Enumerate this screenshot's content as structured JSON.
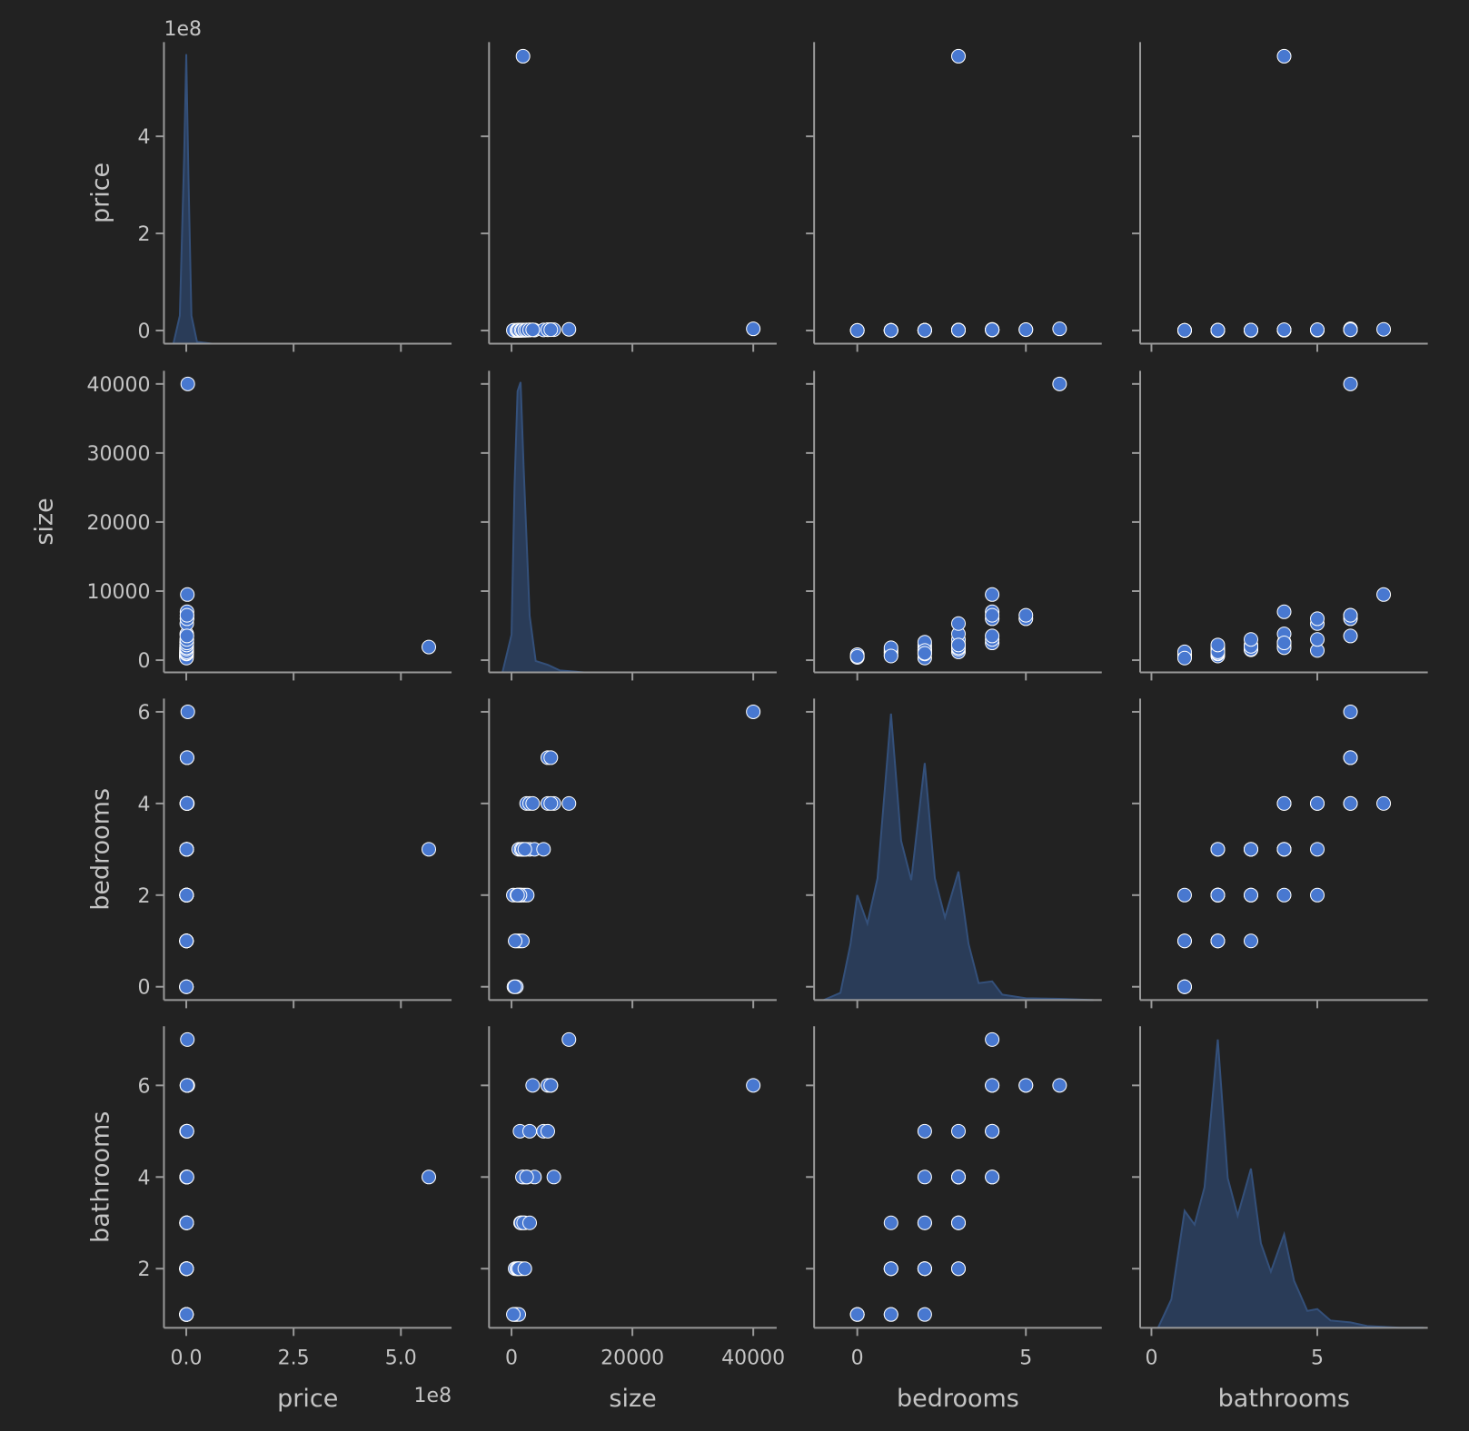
{
  "chart_data": {
    "type": "pairplot",
    "color": "#4878d0",
    "kde_color": "#2b3f5e",
    "variables": [
      {
        "name": "price",
        "offset_label": "1e8",
        "xlim": [
          -52000000,
          618000000
        ],
        "ylim": [
          -27000000,
          594000000
        ],
        "xticks": [
          {
            "value": 0,
            "label": "0.0"
          },
          {
            "value": 250000000,
            "label": "2.5"
          },
          {
            "value": 500000000,
            "label": "5.0"
          }
        ],
        "yticks": [
          0,
          {
            "value": 200000000,
            "label": "2"
          },
          {
            "value": 400000000,
            "label": "4"
          }
        ],
        "kde_x": [
          -30000000,
          -15000000,
          -5000000,
          0,
          5000000,
          12000000,
          25000000,
          60000000,
          610000000
        ],
        "kde_density": [
          0,
          9.3e-09,
          6.2e-08,
          9.6e-08,
          5.6e-08,
          9.3e-09,
          6e-10,
          0,
          0
        ],
        "density_lim": [
          0,
          1e-07
        ]
      },
      {
        "name": "size",
        "xlim": [
          -3720,
          43870
        ],
        "ylim": [
          -1760,
          41900
        ],
        "xticks": [
          0,
          20000,
          40000
        ],
        "yticks": [
          0,
          10000,
          20000,
          30000,
          40000
        ],
        "kde_x": [
          -1500,
          0,
          500,
          1000,
          1500,
          2000,
          3000,
          4000,
          6000,
          8000,
          12000,
          43000
        ],
        "kde_density": [
          0,
          5e-05,
          0.000248,
          0.000373,
          0.000385,
          0.000273,
          7.5e-05,
          1.5e-05,
          1e-05,
          2.5e-06,
          0,
          0
        ],
        "density_lim": [
          0,
          0.0004
        ]
      },
      {
        "name": "bedrooms",
        "xlim": [
          -1.28,
          7.25
        ],
        "ylim": [
          -0.29,
          6.29
        ],
        "xticks": [
          0,
          5
        ],
        "yticks": [
          0,
          2,
          4,
          6
        ],
        "kde_x": [
          -1.0,
          -0.5,
          -0.2,
          0,
          0.3,
          0.6,
          1.0,
          1.3,
          1.6,
          2.0,
          2.3,
          2.6,
          3.0,
          3.3,
          3.6,
          4.0,
          4.3,
          5,
          6,
          7
        ],
        "kde_density": [
          0,
          0.012,
          0.093,
          0.174,
          0.127,
          0.202,
          0.475,
          0.264,
          0.199,
          0.393,
          0.202,
          0.137,
          0.213,
          0.093,
          0.028,
          0.031,
          0.009,
          0.003,
          0.002,
          0
        ],
        "density_lim": [
          0,
          0.5
        ]
      },
      {
        "name": "bathrooms",
        "xlim": [
          -0.34,
          8.33
        ],
        "ylim": [
          0.71,
          7.29
        ],
        "xticks": [
          0,
          5
        ],
        "yticks": [
          2,
          4,
          6
        ],
        "kde_x": [
          0.2,
          0.6,
          1.0,
          1.3,
          1.6,
          2.0,
          2.3,
          2.6,
          3.0,
          3.3,
          3.6,
          4.0,
          4.3,
          4.7,
          5.0,
          5.4,
          6.0,
          6.5,
          7.5,
          8.2
        ],
        "kde_density": [
          0,
          0.047,
          0.194,
          0.171,
          0.233,
          0.478,
          0.248,
          0.186,
          0.264,
          0.14,
          0.093,
          0.155,
          0.078,
          0.028,
          0.031,
          0.012,
          0.009,
          0.003,
          0,
          0
        ],
        "density_lim": [
          0,
          0.5
        ]
      }
    ],
    "points": [
      [
        565000000,
        1900,
        3,
        4
      ],
      [
        3500000,
        40000,
        6,
        6
      ],
      [
        2500000,
        9500,
        4,
        7
      ],
      [
        1800000,
        6000,
        5,
        6
      ],
      [
        1900000,
        6500,
        5,
        6
      ],
      [
        250000,
        400,
        0,
        1
      ],
      [
        300000,
        800,
        0,
        1
      ],
      [
        280000,
        550,
        0,
        1
      ],
      [
        400000,
        700,
        1,
        1
      ],
      [
        420000,
        1000,
        1,
        2
      ],
      [
        380000,
        1200,
        1,
        1
      ],
      [
        450000,
        1500,
        1,
        2
      ],
      [
        500000,
        1800,
        1,
        3
      ],
      [
        350000,
        600,
        1,
        2
      ],
      [
        500000,
        300,
        2,
        1
      ],
      [
        550000,
        900,
        2,
        2
      ],
      [
        600000,
        1200,
        2,
        2
      ],
      [
        650000,
        1500,
        2,
        3
      ],
      [
        700000,
        1800,
        2,
        2
      ],
      [
        620000,
        2200,
        2,
        3
      ],
      [
        680000,
        2600,
        2,
        4
      ],
      [
        720000,
        1400,
        2,
        5
      ],
      [
        580000,
        1000,
        2,
        2
      ],
      [
        800000,
        1200,
        3,
        2
      ],
      [
        850000,
        1600,
        3,
        3
      ],
      [
        900000,
        2000,
        3,
        3
      ],
      [
        950000,
        2400,
        3,
        4
      ],
      [
        1000000,
        3000,
        3,
        3
      ],
      [
        1100000,
        3800,
        3,
        4
      ],
      [
        1200000,
        5300,
        3,
        5
      ],
      [
        900000,
        1800,
        3,
        4
      ],
      [
        870000,
        2200,
        3,
        2
      ],
      [
        1300000,
        2500,
        4,
        4
      ],
      [
        1400000,
        3000,
        4,
        5
      ],
      [
        1500000,
        3500,
        4,
        6
      ],
      [
        1600000,
        6000,
        4,
        5
      ],
      [
        1700000,
        7000,
        4,
        4
      ],
      [
        1650000,
        6500,
        4,
        6
      ]
    ]
  }
}
